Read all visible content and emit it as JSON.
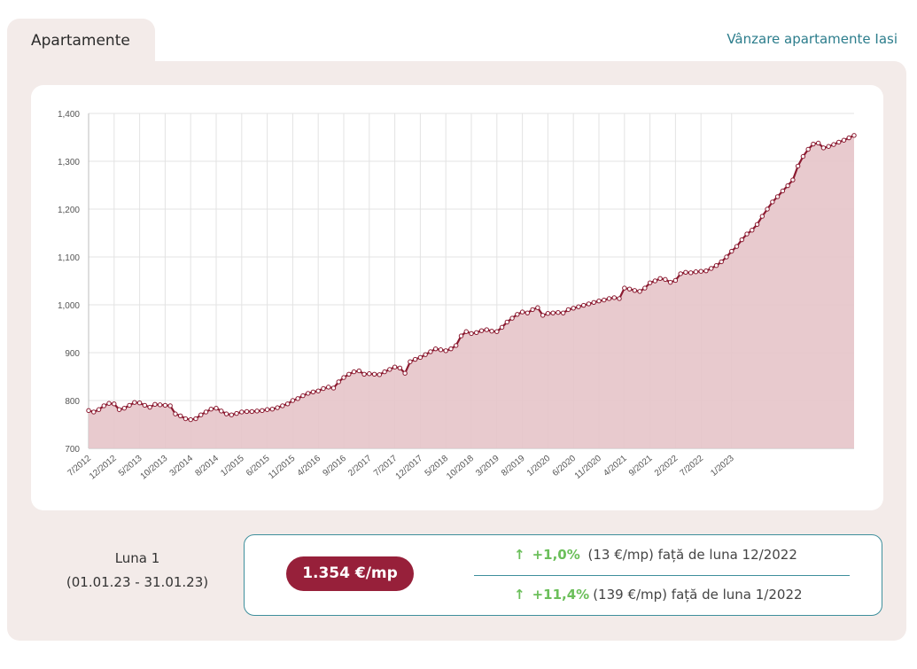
{
  "tab": {
    "label": "Apartamente"
  },
  "header_link": {
    "label": "Vânzare apartamente Iasi"
  },
  "colors": {
    "line": "#8b1a30",
    "fill": "#e6c4c9",
    "pill": "#97203a",
    "accent": "#2c7d8c",
    "positive": "#6bbf5a"
  },
  "chart_data": {
    "type": "area",
    "title": "",
    "xlabel": "",
    "ylabel": "",
    "ylim": [
      700,
      1400
    ],
    "y_ticks": [
      "700",
      "800",
      "900",
      "1,000",
      "1,100",
      "1,200",
      "1,300",
      "1,400"
    ],
    "y_tick_values": [
      700,
      800,
      900,
      1000,
      1100,
      1200,
      1300,
      1400
    ],
    "x_tick_labels": [
      "7/2012",
      "12/2012",
      "5/2013",
      "10/2013",
      "3/2014",
      "8/2014",
      "1/2015",
      "6/2015",
      "11/2015",
      "4/2016",
      "9/2016",
      "2/2017",
      "7/2017",
      "12/2017",
      "5/2018",
      "10/2018",
      "3/2019",
      "8/2019",
      "1/2020",
      "6/2020",
      "11/2020",
      "4/2021",
      "9/2021",
      "2/2022",
      "7/2022",
      "1/2023"
    ],
    "grid": true,
    "series": [
      {
        "start": "7/2012",
        "end": "1/2023",
        "values": [
          779,
          776,
          781,
          789,
          794,
          793,
          781,
          784,
          790,
          796,
          795,
          790,
          786,
          792,
          791,
          790,
          789,
          772,
          768,
          762,
          760,
          762,
          770,
          776,
          782,
          784,
          778,
          772,
          770,
          773,
          776,
          777,
          777,
          778,
          779,
          781,
          782,
          785,
          789,
          793,
          800,
          804,
          810,
          815,
          818,
          820,
          825,
          828,
          826,
          839,
          848,
          855,
          860,
          862,
          855,
          856,
          855,
          854,
          860,
          865,
          870,
          868,
          857,
          881,
          886,
          890,
          896,
          902,
          908,
          906,
          904,
          908,
          915,
          935,
          944,
          940,
          942,
          946,
          948,
          945,
          944,
          953,
          964,
          972,
          980,
          985,
          983,
          990,
          994,
          978,
          982,
          983,
          984,
          983,
          990,
          993,
          996,
          999,
          1002,
          1005,
          1008,
          1010,
          1013,
          1015,
          1013,
          1035,
          1033,
          1030,
          1028,
          1035,
          1046,
          1050,
          1055,
          1053,
          1047,
          1051,
          1065,
          1068,
          1067,
          1069,
          1070,
          1071,
          1076,
          1082,
          1090,
          1100,
          1112,
          1122,
          1136,
          1148,
          1156,
          1168,
          1185,
          1200,
          1215,
          1226,
          1238,
          1249,
          1261,
          1290,
          1310,
          1325,
          1336,
          1338,
          1328,
          1331,
          1335,
          1340,
          1344,
          1349,
          1354
        ]
      }
    ]
  },
  "summary": {
    "period_title": "Luna 1",
    "period_range": "(01.01.23 - 31.01.23)",
    "price": "1.354 €/mp",
    "change_month": {
      "arrow": "↑",
      "percent": "+1,0%",
      "text": "(13 €/mp) față de luna 12/2022"
    },
    "change_year": {
      "arrow": "↑",
      "percent": "+11,4%",
      "text": "(139 €/mp) față de luna 1/2022"
    }
  }
}
